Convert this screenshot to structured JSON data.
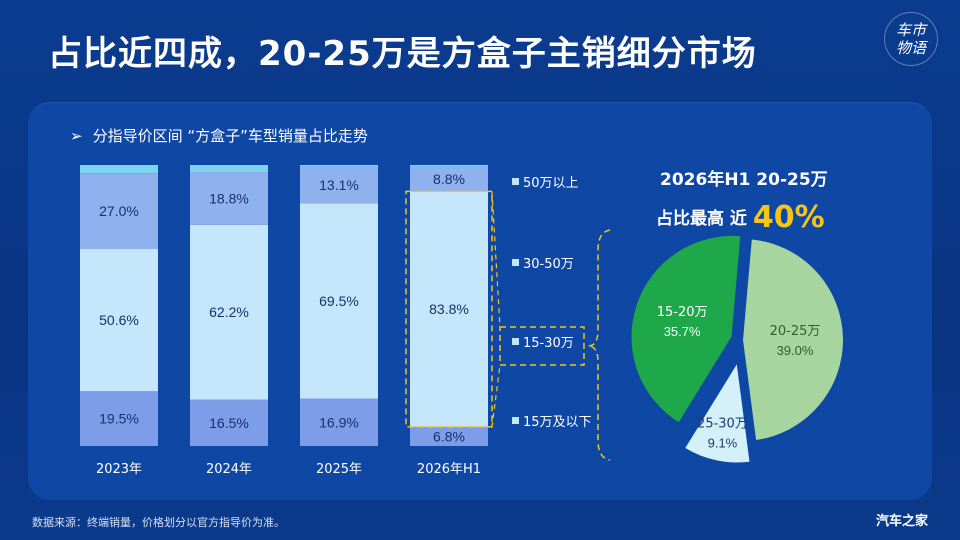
{
  "header": {
    "title": "占比近四成，20-25万是方盒子主销细分市场",
    "brand_mark": [
      "车市",
      "物语"
    ]
  },
  "section": {
    "arrow": "➢",
    "title": "分指导价区间 “方盒子”车型销量占比走势"
  },
  "highlight": {
    "line1": "2026年H1 20-25万",
    "line2_prefix": "占比最高 近",
    "line2_value": "40%"
  },
  "footer": {
    "source": "数据来源：终端销量，价格划分以官方指导价为准。",
    "logo": "汽车之家"
  },
  "colors": {
    "bg": "#0b3c8f",
    "panel": "#0f47a5",
    "seg_top": "#8fb1ee",
    "seg_30_50": "#8fb1ee",
    "seg_15_30": "#c6e7fb",
    "seg_low": "#7e9de8",
    "top_sliver": "#7dd3f0",
    "pie_20_25": "#a7d5a0",
    "pie_25_30": "#d4f0fa",
    "pie_15_20": "#1ea84a",
    "dash": "#f5c518",
    "highlight": "#f5c518"
  },
  "chart_data": [
    {
      "type": "bar",
      "stacked": true,
      "categories": [
        "2023年",
        "2024年",
        "2025年",
        "2026年H1"
      ],
      "series": [
        {
          "name": "15万及以下",
          "values": [
            19.5,
            16.5,
            16.9,
            6.8
          ],
          "labels": [
            "19.5%",
            "16.5%",
            "16.9%",
            "6.8%"
          ]
        },
        {
          "name": "15-30万",
          "values": [
            50.6,
            62.2,
            69.5,
            83.8
          ],
          "labels": [
            "50.6%",
            "62.2%",
            "69.5%",
            "83.8%"
          ]
        },
        {
          "name": "30-50万",
          "values": [
            27.0,
            18.8,
            13.1,
            8.8
          ],
          "labels": [
            "27.0%",
            "18.8%",
            "13.1%",
            "8.8%"
          ]
        },
        {
          "name": "50万以上",
          "values": [
            2.9,
            2.5,
            0.5,
            0.6
          ],
          "labels": [
            "",
            "",
            "",
            ""
          ]
        }
      ],
      "legend": [
        "50万以上",
        "30-50万",
        "15-30万",
        "15万及以下"
      ],
      "ylim": [
        0,
        100
      ]
    },
    {
      "type": "pie",
      "slices": [
        {
          "name": "20-25万",
          "value": 39.0,
          "label": "39.0%"
        },
        {
          "name": "25-30万",
          "value": 9.1,
          "label": "9.1%"
        },
        {
          "name": "15-20万",
          "value": 35.7,
          "label": "35.7%"
        }
      ]
    }
  ]
}
